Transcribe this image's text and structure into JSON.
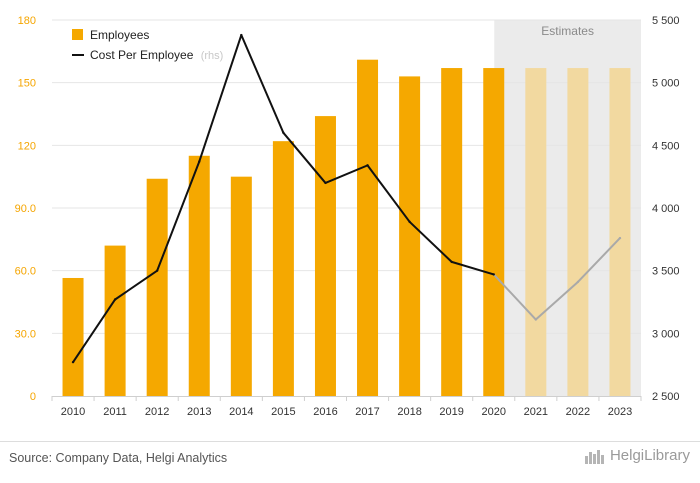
{
  "chart_data": {
    "type": "bar+line",
    "categories": [
      "2010",
      "2011",
      "2012",
      "2013",
      "2014",
      "2015",
      "2016",
      "2017",
      "2018",
      "2019",
      "2020",
      "2021",
      "2022",
      "2023"
    ],
    "estimate_from_index": 11,
    "estimates_label": "Estimates",
    "left_axis": {
      "min": 0,
      "max": 180,
      "ticks": [
        0,
        30.0,
        60.0,
        90.0,
        120,
        150,
        180
      ],
      "tick_labels": [
        "0",
        "30.0",
        "60.0",
        "90.0",
        "120",
        "150",
        "180"
      ]
    },
    "right_axis": {
      "min": 2500,
      "max": 5500,
      "ticks": [
        2500,
        3000,
        3500,
        4000,
        4500,
        5000,
        5500
      ],
      "tick_labels": [
        "2 500",
        "3 000",
        "3 500",
        "4 000",
        "4 500",
        "5 000",
        "5 500"
      ]
    },
    "series": [
      {
        "name": "Employees",
        "axis": "left",
        "kind": "bar",
        "color": "#f5a800",
        "estimate_color": "#f2d9a0",
        "values": [
          56.5,
          72,
          104,
          115,
          105,
          122,
          134,
          161,
          153,
          157,
          157,
          157,
          157,
          157
        ]
      },
      {
        "name": "Cost Per Employee",
        "axis": "right",
        "kind": "line",
        "color": "#111111",
        "estimate_color": "#a9a9a9",
        "values": [
          2770,
          3270,
          3500,
          4370,
          5380,
          4600,
          4200,
          4340,
          3890,
          3570,
          3470,
          3110,
          3410,
          3760
        ]
      }
    ],
    "legend": [
      {
        "label": "Employees",
        "note": ""
      },
      {
        "label": "Cost Per Employee",
        "note": "(rhs)"
      }
    ]
  },
  "footer": {
    "source": "Source: Company Data, Helgi Analytics",
    "brand": "HelgiLibrary"
  }
}
